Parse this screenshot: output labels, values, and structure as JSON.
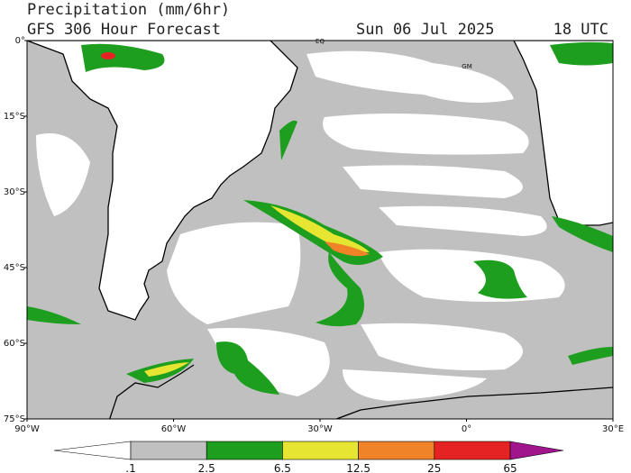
{
  "header": {
    "title": "Precipitation (mm/6hr)",
    "subtitle": "GFS 306 Hour Forecast",
    "date": "Sun 06 Jul 2025",
    "time": "18 UTC"
  },
  "map": {
    "lonlim": [
      -90,
      30
    ],
    "latlim": [
      0,
      -75
    ],
    "lat_ticks": [
      {
        "value": 0,
        "label": "0°"
      },
      {
        "value": -15,
        "label": "15°S"
      },
      {
        "value": -30,
        "label": "30°S"
      },
      {
        "value": -45,
        "label": "45°S"
      },
      {
        "value": -60,
        "label": "60°S"
      },
      {
        "value": -75,
        "label": "75°S"
      }
    ],
    "lon_ticks": [
      {
        "value": -90,
        "label": "90°W"
      },
      {
        "value": -60,
        "label": "60°W"
      },
      {
        "value": -30,
        "label": "30°W"
      },
      {
        "value": 0,
        "label": "0°"
      },
      {
        "value": 30,
        "label": "30°E"
      }
    ],
    "annotations": [
      "EQ",
      "GM"
    ]
  },
  "colorbar": {
    "ticks": [
      {
        "value": 0.1,
        "label": ".1"
      },
      2.5,
      6.5,
      12.5,
      25,
      65
    ],
    "colors": [
      "#ffffff",
      "#c0c0c0",
      "#1e9e1e",
      "#e6e632",
      "#f08228",
      "#e62323",
      "#a0148c"
    ]
  }
}
